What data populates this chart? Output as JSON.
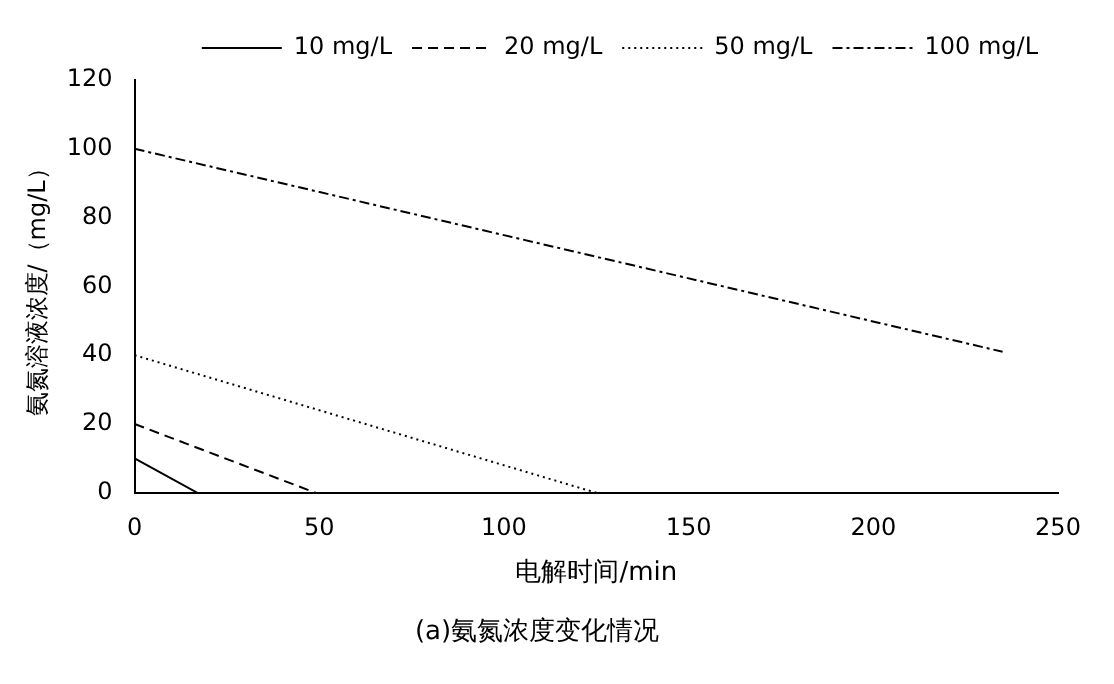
{
  "chart_data": {
    "type": "line",
    "title": "(a)氨氮浓度变化情况",
    "xlabel": "电解时间/min",
    "ylabel": "氨氮溶液浓度/（mg/L）",
    "xlim": [
      0,
      250
    ],
    "xticks": [
      0,
      50,
      100,
      150,
      200,
      250
    ],
    "ylim": [
      0,
      120
    ],
    "yticks": [
      0,
      20,
      40,
      60,
      80,
      100,
      120
    ],
    "grid": false,
    "legend": "top right",
    "marker": "none",
    "series": [
      {
        "name": "10 mg/L",
        "color": "#000000",
        "line_style": "solid",
        "x": [
          0,
          17
        ],
        "values": [
          10,
          0
        ]
      },
      {
        "name": "20 mg/L",
        "color": "#000000",
        "line_style": "dashed",
        "x": [
          0,
          49
        ],
        "values": [
          20,
          0
        ]
      },
      {
        "name": "50 mg/L",
        "color": "#000000",
        "line_style": "dotted",
        "x": [
          0,
          125
        ],
        "values": [
          40,
          0
        ]
      },
      {
        "name": "100 mg/L",
        "color": "#000000",
        "line_style": "dashdot",
        "x": [
          0,
          235
        ],
        "values": [
          100,
          41
        ]
      }
    ]
  }
}
